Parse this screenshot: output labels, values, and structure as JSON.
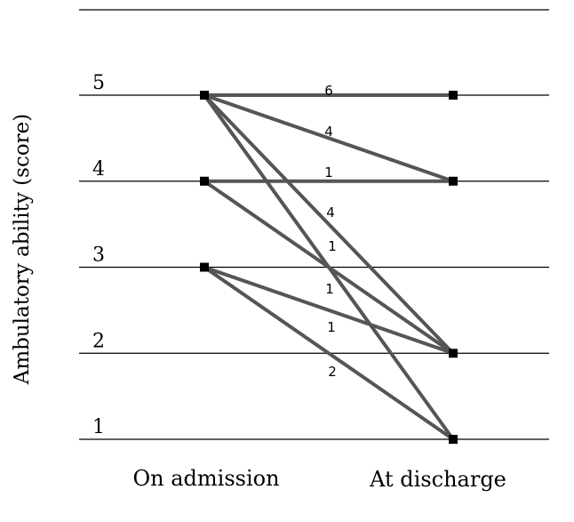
{
  "chart_data": {
    "type": "line",
    "ylabel": "Ambulatory ability (score)",
    "yticks": [
      1,
      2,
      3,
      4,
      5
    ],
    "categories": [
      "On admission",
      "At discharge"
    ],
    "grid": true,
    "colors": {
      "line": "#555555",
      "marker": "#000000",
      "grid": "#000000"
    },
    "flows": [
      {
        "from": 5,
        "to": 5,
        "count": 6
      },
      {
        "from": 5,
        "to": 4,
        "count": 4
      },
      {
        "from": 4,
        "to": 4,
        "count": 1
      },
      {
        "from": 5,
        "to": 2,
        "count": 4
      },
      {
        "from": 5,
        "to": 1,
        "count": 1
      },
      {
        "from": 4,
        "to": 2,
        "count": 1
      },
      {
        "from": 3,
        "to": 2,
        "count": 1
      },
      {
        "from": 3,
        "to": 1,
        "count": 2
      }
    ]
  }
}
